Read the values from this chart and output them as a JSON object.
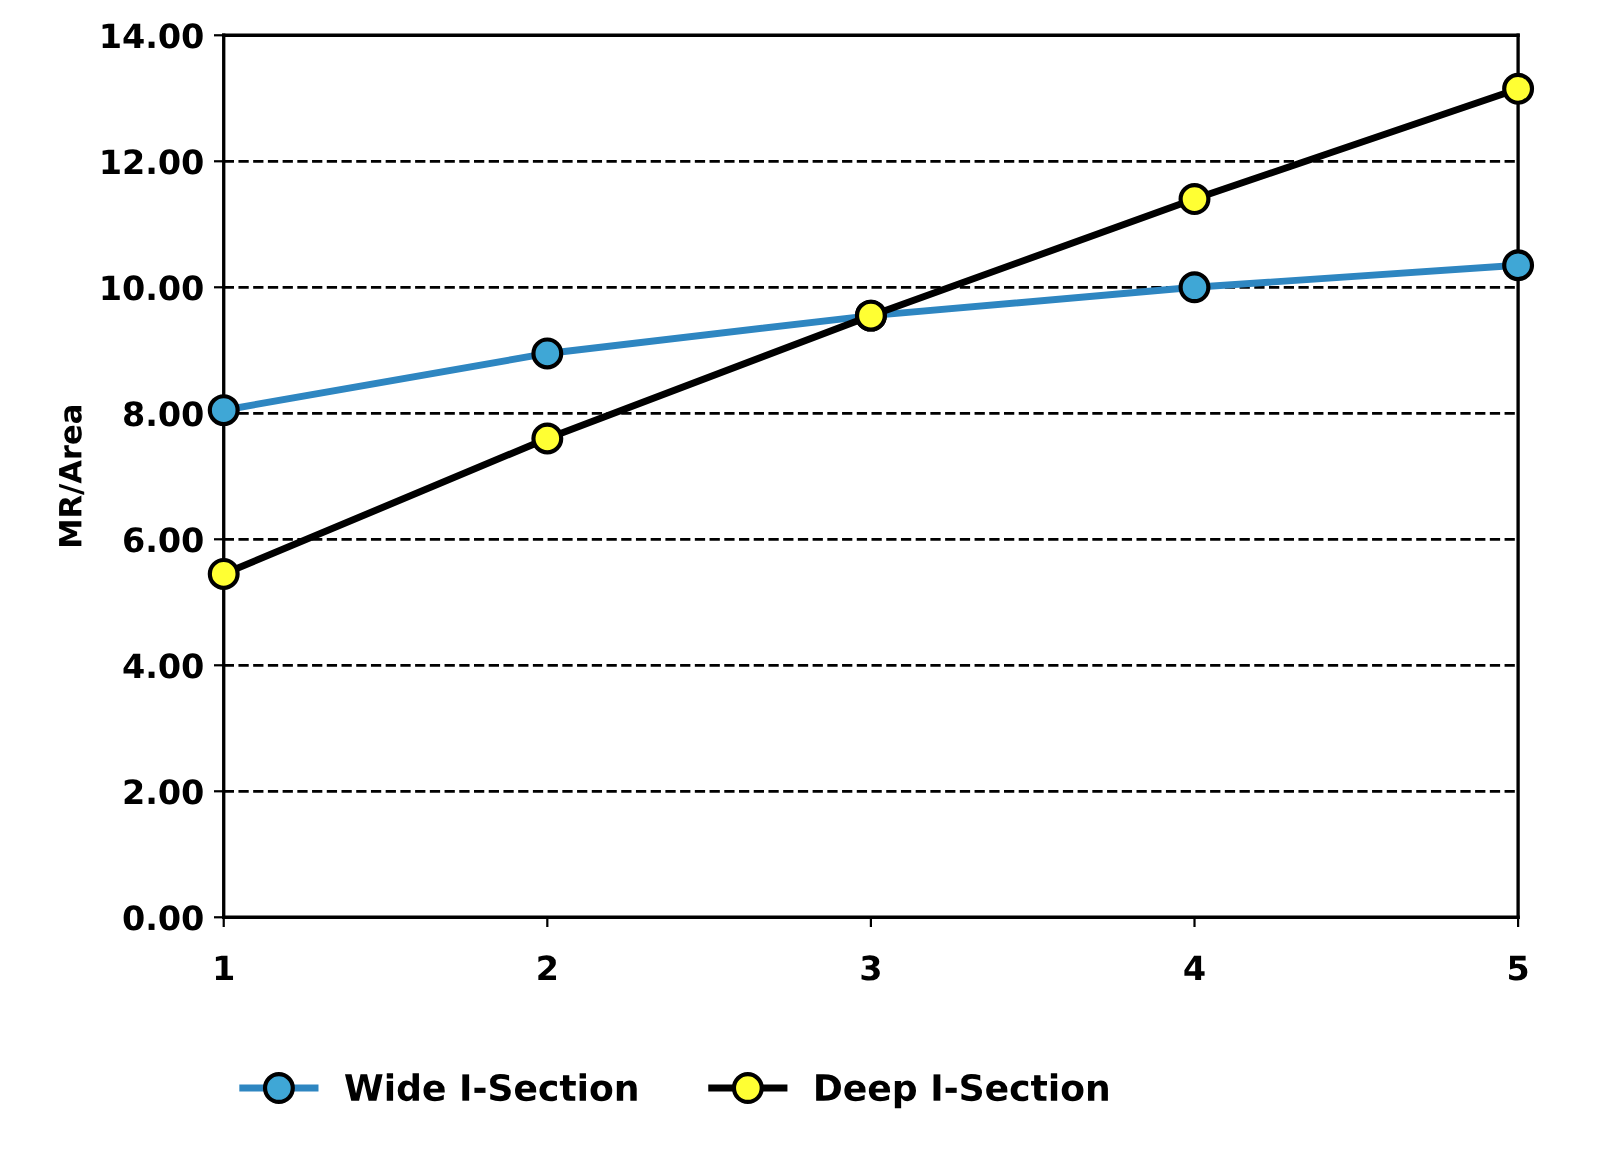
{
  "chart_data": {
    "type": "line",
    "ylabel": "MR/Area",
    "x": [
      1,
      2,
      3,
      4,
      5
    ],
    "xlim": [
      1,
      5
    ],
    "xticks": [
      1,
      2,
      3,
      4,
      5
    ],
    "ylim": [
      0,
      14
    ],
    "yticks": [
      {
        "value": 0,
        "label": "0.00"
      },
      {
        "value": 2,
        "label": "2.00"
      },
      {
        "value": 4,
        "label": "4.00"
      },
      {
        "value": 6,
        "label": "6.00"
      },
      {
        "value": 8,
        "label": "8.00"
      },
      {
        "value": 10,
        "label": "10.00"
      },
      {
        "value": 12,
        "label": "12.00"
      },
      {
        "value": 14,
        "label": "14.00"
      }
    ],
    "grid": "y",
    "legend": "bottom",
    "marker": "circle",
    "line_style": "solid",
    "series": [
      {
        "name": "Wide I-Section",
        "color": "#2e86c1",
        "colors": [
          "#3fa7d6",
          "#3fa7d6",
          "#3fa7d6",
          "#3fa7d6",
          "#3fa7d6"
        ],
        "values": [
          8.05,
          8.95,
          9.55,
          10.0,
          10.35
        ]
      },
      {
        "name": "Deep I-Section",
        "color": "#000000",
        "colors": [
          "#ffff33",
          "#ffff33",
          "#ffff33",
          "#ffff33",
          "#ffff33"
        ],
        "values": [
          5.45,
          7.6,
          9.55,
          11.4,
          13.15
        ]
      }
    ]
  }
}
